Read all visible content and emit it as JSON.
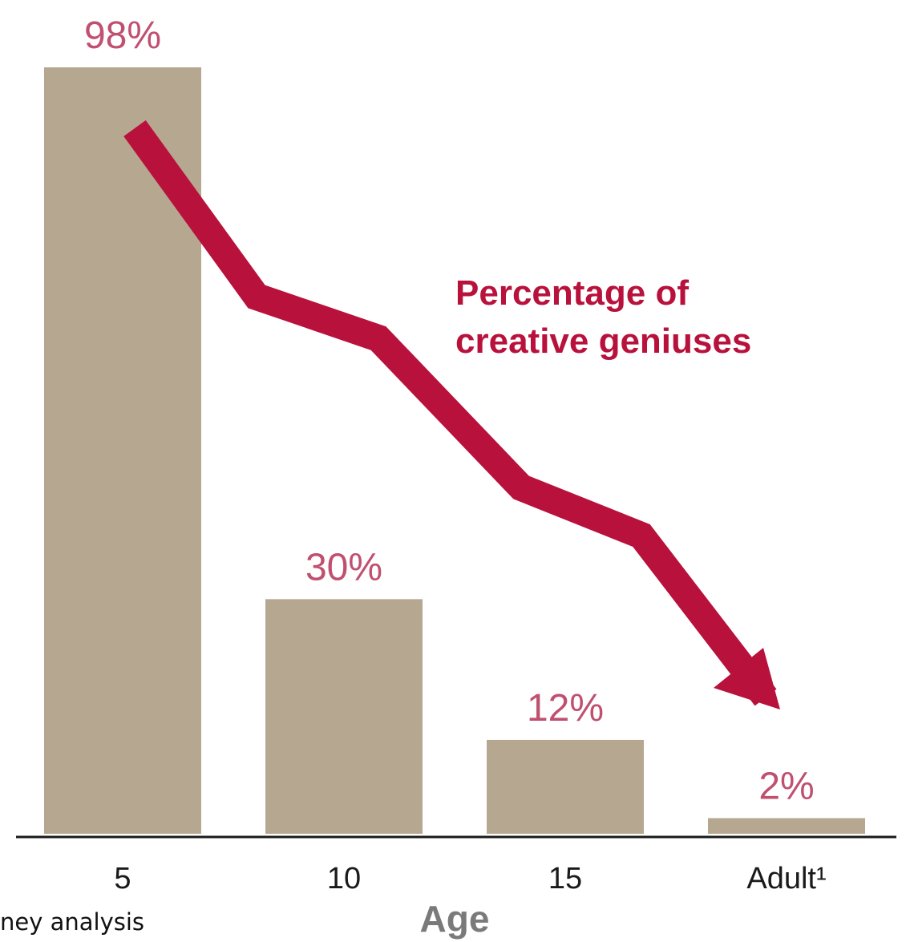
{
  "chart_data": {
    "type": "bar",
    "categories": [
      "5",
      "10",
      "15",
      "Adult¹"
    ],
    "values": [
      98,
      30,
      12,
      2
    ],
    "value_labels": [
      "98%",
      "30%",
      "12%",
      "2%"
    ],
    "xlabel": "Age",
    "ylabel": "",
    "ylim": [
      0,
      100
    ],
    "grid": false,
    "annotation": {
      "line1": "Percentage of",
      "line2": "creative geniuses"
    },
    "source_note": "ney analysis"
  },
  "colors": {
    "bar": "#b6a890",
    "accent": "#b8123c",
    "value_label": "#c0506f",
    "axis": "#1a1a1a",
    "axis_title": "#7a7a7a"
  }
}
